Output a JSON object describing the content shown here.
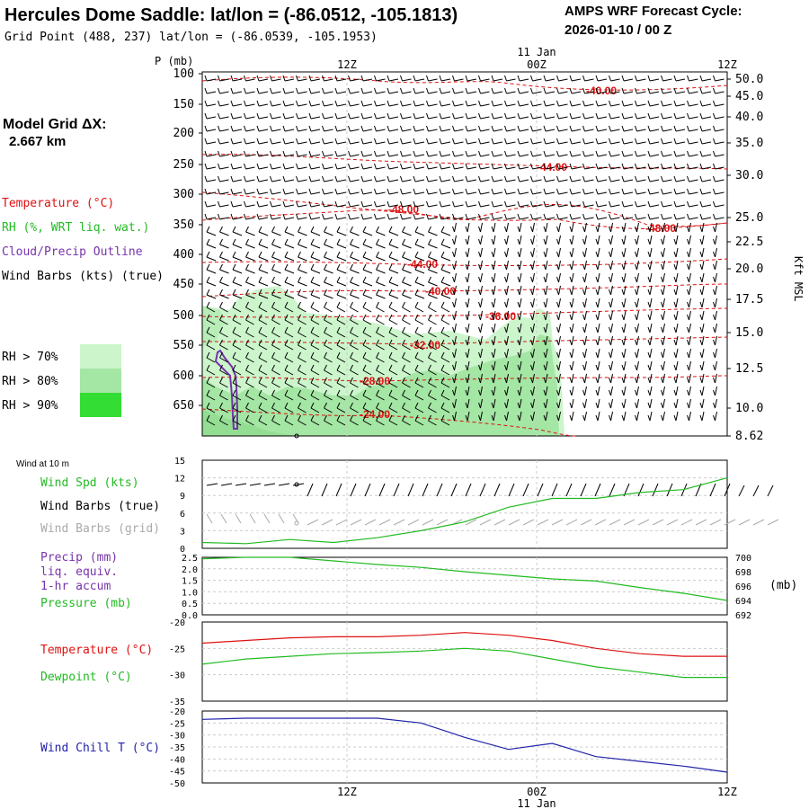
{
  "header": {
    "title": "Hercules Dome Saddle:  lat/lon = (-86.0512, -105.1813)",
    "grid_point": "Grid Point (488, 237) lat/lon = (-86.0539, -105.1953)",
    "cycle_label": "AMPS WRF Forecast Cycle:",
    "cycle_value": "2026-01-10 / 00  Z"
  },
  "model_info": {
    "label": "Model Grid ΔX:",
    "value": "2.667 km"
  },
  "time_axis": {
    "ticks": [
      "12Z",
      "00Z",
      "12Z"
    ],
    "date_label": "11 Jan",
    "top_date_label": "11 Jan"
  },
  "colors": {
    "temperature": "#dd1111",
    "rh": "#22bb22",
    "cloud": "#7733aa",
    "wind_chill": "#2222aa",
    "grid_barbs": "#aaaaaa",
    "rh70": "#ccf5cc",
    "rh80": "#a4e6a4",
    "rh90": "#33dd33"
  },
  "profile_panel": {
    "p_label": "P (mb)",
    "right_axis_label": "Kft MSL",
    "pressure_ticks": [
      "100",
      "150",
      "200",
      "250",
      "300",
      "350",
      "400",
      "450",
      "500",
      "550",
      "600",
      "650"
    ],
    "height_ticks": [
      "50.0",
      "45.0",
      "40.0",
      "35.0",
      "30.0",
      "25.0",
      "22.5",
      "20.0",
      "17.5",
      "15.0",
      "12.5",
      "10.0",
      "8.62"
    ],
    "legend": {
      "temperature": "Temperature (°C)",
      "rh": "RH (%, WRT liq. wat.)",
      "cloud": "Cloud/Precip Outline",
      "wind": "Wind Barbs (kts) (true)"
    },
    "rh_legend": [
      "RH > 70%",
      "RH > 80%",
      "RH > 90%"
    ],
    "contour_labels": [
      "-40.00",
      "-44.00",
      "-48.00",
      "-48.00",
      "-44.00",
      "-40.00",
      "-36.00",
      "-32.00",
      "-28.00",
      "-24.00"
    ]
  },
  "wind_panel": {
    "title": "Wind at 10 m",
    "y_ticks": [
      "15",
      "12",
      "9",
      "6",
      "3",
      "0"
    ],
    "legend": {
      "speed": "Wind Spd (kts)",
      "true_barbs": "Wind Barbs (true)",
      "grid_barbs": "Wind Barbs (grid)"
    }
  },
  "precip_panel": {
    "left_ticks": [
      "2.5",
      "2.0",
      "1.5",
      "1.0",
      "0.5",
      "0.0"
    ],
    "right_ticks": [
      "700",
      "698",
      "696",
      "694",
      "692"
    ],
    "right_unit": "(mb)",
    "legend": {
      "precip": "Precip (mm)",
      "liq": "liq. equiv.",
      "accum": "1-hr accum",
      "pressure": "Pressure (mb)"
    }
  },
  "temp_panel": {
    "y_ticks": [
      "-20",
      "-25",
      "-30",
      "-35"
    ],
    "legend": {
      "temperature": "Temperature (°C)",
      "dewpoint": "Dewpoint (°C)"
    }
  },
  "chill_panel": {
    "y_ticks": [
      "-20",
      "-25",
      "-30",
      "-35",
      "-40",
      "-45",
      "-50"
    ],
    "legend": "Wind Chill T (°C)"
  },
  "chart_data": [
    {
      "type": "line",
      "title": "Wind at 10 m",
      "xlabel": "",
      "ylabel": "Wind Spd (kts)",
      "x_hours": [
        0,
        3,
        6,
        9,
        12,
        15,
        18,
        21,
        24,
        27,
        30,
        33,
        36
      ],
      "series": [
        {
          "name": "Wind Spd (kts)",
          "values": [
            1.0,
            0.8,
            1.5,
            1.0,
            1.8,
            3.0,
            4.5,
            7.0,
            8.5,
            8.5,
            9.5,
            10.0,
            12.0
          ]
        }
      ],
      "ylim": [
        0,
        15
      ],
      "grid": true
    },
    {
      "type": "line",
      "title": "Pressure (mb)",
      "x_hours": [
        0,
        3,
        6,
        9,
        12,
        15,
        18,
        21,
        24,
        27,
        30,
        33,
        36
      ],
      "series": [
        {
          "name": "Pressure (mb)",
          "values": [
            699.8,
            700.0,
            700.0,
            699.5,
            699.0,
            698.6,
            698.0,
            697.5,
            697.0,
            696.7,
            695.8,
            695.0,
            694.0
          ]
        }
      ],
      "ylim": [
        692,
        700
      ]
    },
    {
      "type": "line",
      "title": "Temperature / Dewpoint",
      "x_hours": [
        0,
        3,
        6,
        9,
        12,
        15,
        18,
        21,
        24,
        27,
        30,
        33,
        36
      ],
      "series": [
        {
          "name": "Temperature (°C)",
          "values": [
            -24.0,
            -23.5,
            -23.0,
            -22.8,
            -22.8,
            -22.5,
            -22.0,
            -22.5,
            -23.5,
            -25.0,
            -26.0,
            -26.5,
            -26.5
          ]
        },
        {
          "name": "Dewpoint (°C)",
          "values": [
            -28.0,
            -27.0,
            -26.5,
            -26.0,
            -25.8,
            -25.5,
            -25.0,
            -25.5,
            -27.0,
            -28.5,
            -29.5,
            -30.5,
            -30.5
          ]
        }
      ],
      "ylim": [
        -35,
        -20
      ]
    },
    {
      "type": "line",
      "title": "Wind Chill T (°C)",
      "x_hours": [
        0,
        3,
        6,
        9,
        12,
        15,
        18,
        21,
        24,
        27,
        30,
        33,
        36
      ],
      "series": [
        {
          "name": "Wind Chill T (°C)",
          "values": [
            -23.5,
            -23.0,
            -23.0,
            -23.0,
            -23.0,
            -25.0,
            -31.0,
            -36.0,
            -33.5,
            -39.0,
            -41.0,
            -43.0,
            -45.5
          ]
        }
      ],
      "ylim": [
        -50,
        -20
      ]
    }
  ]
}
